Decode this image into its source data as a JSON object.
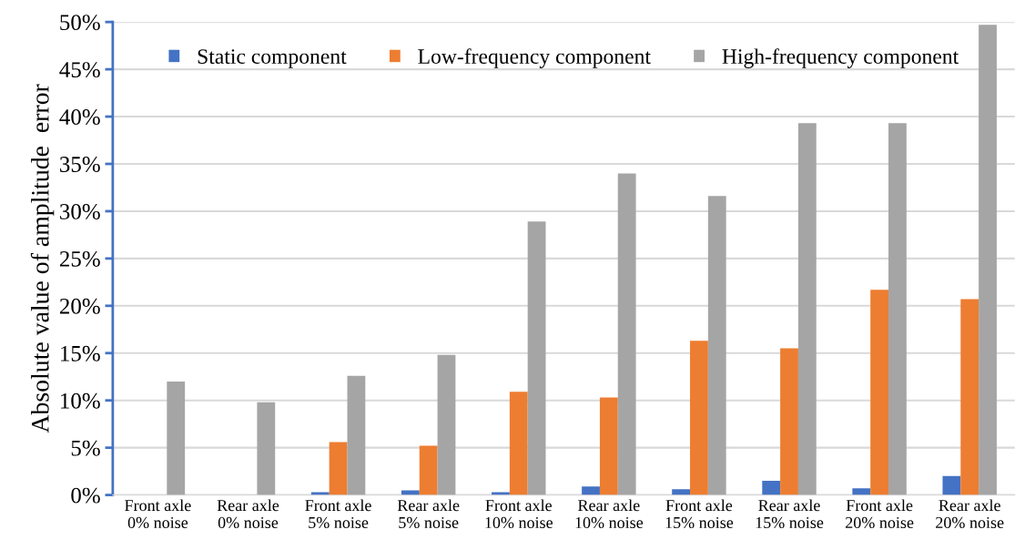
{
  "chart_data": {
    "type": "bar",
    "ylabel": "Absolute value of amplitude  error",
    "categories": [
      "Front axle\n0% noise",
      "Rear axle\n0% noise",
      "Front axle\n5% noise",
      "Rear axle\n5% noise",
      "Front axle\n10% noise",
      "Rear axle\n10% noise",
      "Front axle\n15% noise",
      "Rear axle\n15% noise",
      "Front axle\n20% noise",
      "Rear axle\n20% noise"
    ],
    "series": [
      {
        "name": "Static component",
        "color": "#4472c4",
        "values": [
          null,
          null,
          0.3,
          0.5,
          0.3,
          0.9,
          0.6,
          1.5,
          0.7,
          2.0
        ]
      },
      {
        "name": "Low-frequency component",
        "color": "#ed7d31",
        "values": [
          null,
          null,
          5.6,
          5.2,
          10.9,
          10.3,
          16.3,
          15.5,
          21.7,
          20.7
        ]
      },
      {
        "name": "High-frequency component",
        "color": "#a5a5a5",
        "values": [
          12.0,
          9.8,
          12.6,
          14.8,
          28.9,
          34.0,
          31.6,
          39.3,
          39.3,
          49.7
        ]
      }
    ],
    "ylim": [
      0,
      50
    ],
    "yticks": [
      {
        "value": 0,
        "label": "0%"
      },
      {
        "value": 5,
        "label": "5%"
      },
      {
        "value": 10,
        "label": "10%"
      },
      {
        "value": 15,
        "label": "15%"
      },
      {
        "value": 20,
        "label": "20%"
      },
      {
        "value": 25,
        "label": "25%"
      },
      {
        "value": 30,
        "label": "30%"
      },
      {
        "value": 35,
        "label": "35%"
      },
      {
        "value": 40,
        "label": "40%"
      },
      {
        "value": 45,
        "label": "45%"
      },
      {
        "value": 50,
        "label": "50%"
      }
    ],
    "grid": "y",
    "legend": "top"
  }
}
